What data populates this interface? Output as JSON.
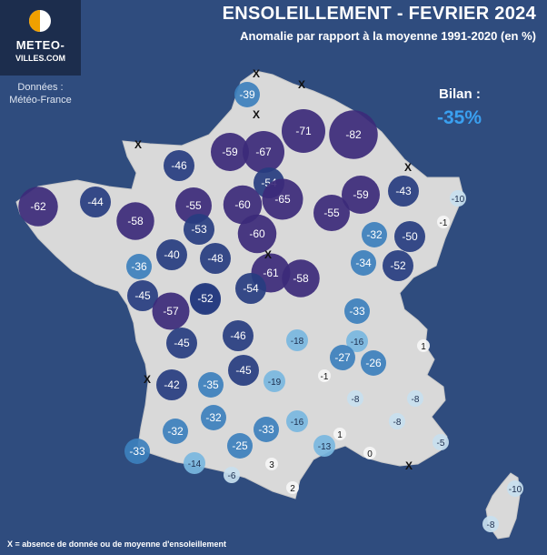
{
  "title": "ENSOLEILLEMENT - FEVRIER 2024",
  "subtitle": "Anomalie par rapport à la moyenne 1991-2020 (en %)",
  "logo": {
    "line1": "METEO-",
    "line2": "VILLES.COM"
  },
  "source": {
    "line1": "Données :",
    "line2": "Météo-France"
  },
  "summary": {
    "label": "Bilan :",
    "value": "-35%"
  },
  "footnote": "X = absence de donnée ou de moyenne d'ensoleillement",
  "colors": {
    "background": "#2f4c7e",
    "land": "#d9d9d9",
    "summary": "#3aa0f0"
  },
  "missing_marker": "X",
  "stations": [
    {
      "value": -39
    },
    {
      "value": -71
    },
    {
      "value": -82
    },
    {
      "value": -59
    },
    {
      "value": -67
    },
    {
      "value": -46
    },
    {
      "value": -54
    },
    {
      "value": -65
    },
    {
      "value": -59
    },
    {
      "value": -43
    },
    {
      "value": -10
    },
    {
      "value": -62
    },
    {
      "value": -44
    },
    {
      "value": -58
    },
    {
      "value": -55
    },
    {
      "value": -60
    },
    {
      "value": -55
    },
    {
      "value": -53
    },
    {
      "value": -60
    },
    {
      "value": -1
    },
    {
      "value": -32
    },
    {
      "value": -50
    },
    {
      "value": -52
    },
    {
      "value": -36
    },
    {
      "value": -40
    },
    {
      "value": -48
    },
    {
      "value": -34
    },
    {
      "value": -52
    },
    {
      "value": -61
    },
    {
      "value": -58
    },
    {
      "value": -45
    },
    {
      "value": -54
    },
    {
      "value": -52
    },
    {
      "value": -57
    },
    {
      "value": -33
    },
    {
      "value": -46
    },
    {
      "value": -18
    },
    {
      "value": -16
    },
    {
      "value": 1
    },
    {
      "value": -45
    },
    {
      "value": -27
    },
    {
      "value": -26
    },
    {
      "value": -45
    },
    {
      "value": -19
    },
    {
      "value": -1
    },
    {
      "value": -42
    },
    {
      "value": -35
    },
    {
      "value": -8
    },
    {
      "value": -8
    },
    {
      "value": -32
    },
    {
      "value": -8
    },
    {
      "value": -32
    },
    {
      "value": -33
    },
    {
      "value": -16
    },
    {
      "value": 1
    },
    {
      "value": -25
    },
    {
      "value": -13
    },
    {
      "value": -5
    },
    {
      "value": -33
    },
    {
      "value": -14
    },
    {
      "value": 0
    },
    {
      "value": -6
    },
    {
      "value": 3
    },
    {
      "value": 2
    },
    {
      "value": -10
    },
    {
      "value": -8
    }
  ]
}
